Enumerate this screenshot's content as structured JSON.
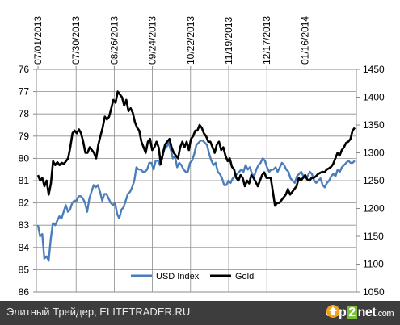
{
  "chart_data": {
    "type": "line",
    "x_tick_labels": [
      "07/01/2013",
      "07/30/2013",
      "08/26/2013",
      "09/24/2013",
      "10/22/2013",
      "11/19/2013",
      "12/17/2013",
      "01/16/2014"
    ],
    "left_axis": {
      "ticks": [
        "76",
        "77",
        "78",
        "79",
        "80",
        "81",
        "82",
        "83",
        "84",
        "85",
        "86"
      ],
      "min": 76,
      "max": 86,
      "reversed": true
    },
    "right_axis": {
      "ticks": [
        "1050",
        "1100",
        "1150",
        "1200",
        "1250",
        "1300",
        "1350",
        "1400",
        "1450"
      ],
      "min": 1050,
      "max": 1450
    },
    "grid": true,
    "legend_position": "bottom",
    "series": [
      {
        "name": "USD Index",
        "axis": "left",
        "color": "#4a7ebb",
        "values": [
          83.0,
          83.5,
          83.4,
          84.5,
          84.4,
          84.6,
          83.6,
          82.9,
          83.0,
          82.8,
          82.6,
          82.7,
          82.4,
          82.1,
          82.4,
          82.3,
          82.0,
          81.9,
          81.9,
          81.7,
          81.7,
          81.8,
          82.0,
          82.4,
          81.8,
          81.5,
          81.2,
          81.3,
          81.2,
          81.5,
          81.9,
          81.6,
          81.6,
          81.8,
          82.0,
          82.1,
          82.0,
          82.5,
          82.7,
          82.3,
          82.2,
          81.9,
          81.6,
          81.5,
          81.3,
          81.0,
          80.4,
          80.5,
          80.5,
          80.6,
          80.6,
          80.5,
          80.2,
          80.2,
          80.5,
          80.1,
          80.1,
          80.3,
          80.0,
          79.6,
          79.5,
          79.3,
          79.6,
          80.0,
          79.9,
          80.4,
          80.2,
          80.3,
          80.5,
          80.6,
          80.6,
          80.2,
          80.1,
          79.8,
          79.4,
          79.3,
          79.2,
          79.2,
          79.3,
          79.4,
          79.8,
          80.1,
          80.3,
          80.2,
          80.6,
          80.7,
          80.9,
          81.2,
          81.2,
          81.0,
          81.1,
          80.9,
          80.8,
          80.7,
          80.6,
          80.5,
          80.6,
          80.3,
          80.5,
          80.4,
          80.7,
          80.8,
          80.5,
          80.3,
          80.2,
          80.0,
          80.1,
          80.4,
          80.6,
          80.5,
          80.5,
          80.4,
          80.6,
          80.4,
          80.2,
          80.3,
          80.5,
          80.6,
          80.9,
          81.0,
          81.1,
          80.8,
          80.7,
          80.6,
          80.8,
          80.9,
          80.8,
          80.6,
          80.7,
          81.0,
          81.1,
          81.0,
          80.9,
          81.2,
          81.3,
          81.1,
          81.0,
          80.8,
          80.7,
          80.8,
          80.5,
          80.6,
          80.4,
          80.3,
          80.2,
          80.1,
          80.2,
          80.2,
          80.1
        ]
      },
      {
        "name": "Gold",
        "axis": "right",
        "color": "#000000",
        "values": [
          1260,
          1250,
          1255,
          1240,
          1250,
          1225,
          1245,
          1285,
          1278,
          1283,
          1278,
          1282,
          1280,
          1285,
          1290,
          1310,
          1335,
          1340,
          1335,
          1342,
          1335,
          1320,
          1300,
          1300,
          1310,
          1305,
          1300,
          1290,
          1315,
          1330,
          1345,
          1365,
          1360,
          1365,
          1380,
          1395,
          1390,
          1410,
          1405,
          1400,
          1385,
          1395,
          1375,
          1380,
          1372,
          1355,
          1345,
          1340,
          1320,
          1310,
          1300,
          1320,
          1325,
          1305,
          1310,
          1320,
          1310,
          1280,
          1300,
          1315,
          1320,
          1325,
          1310,
          1300,
          1295,
          1290,
          1310,
          1320,
          1310,
          1320,
          1305,
          1325,
          1330,
          1340,
          1340,
          1350,
          1345,
          1335,
          1330,
          1320,
          1320,
          1310,
          1300,
          1315,
          1320,
          1305,
          1310,
          1295,
          1285,
          1290,
          1275,
          1270,
          1255,
          1250,
          1260,
          1255,
          1240,
          1250,
          1245,
          1260,
          1255,
          1248,
          1240,
          1250,
          1260,
          1265,
          1255,
          1255,
          1255,
          1230,
          1205,
          1210,
          1210,
          1215,
          1220,
          1225,
          1235,
          1225,
          1230,
          1235,
          1240,
          1255,
          1250,
          1255,
          1260,
          1252,
          1250,
          1255,
          1255,
          1258,
          1262,
          1264,
          1266,
          1265,
          1270,
          1272,
          1275,
          1280,
          1290,
          1300,
          1295,
          1305,
          1310,
          1318,
          1320,
          1325,
          1340,
          1345
        ]
      }
    ]
  },
  "footer": {
    "left_text": "Элитный Трейдер, ELITETRADER.RU",
    "logo_pre": "clip",
    "logo_mid": "2",
    "logo_post": "net",
    "logo_suffix": ".com"
  }
}
